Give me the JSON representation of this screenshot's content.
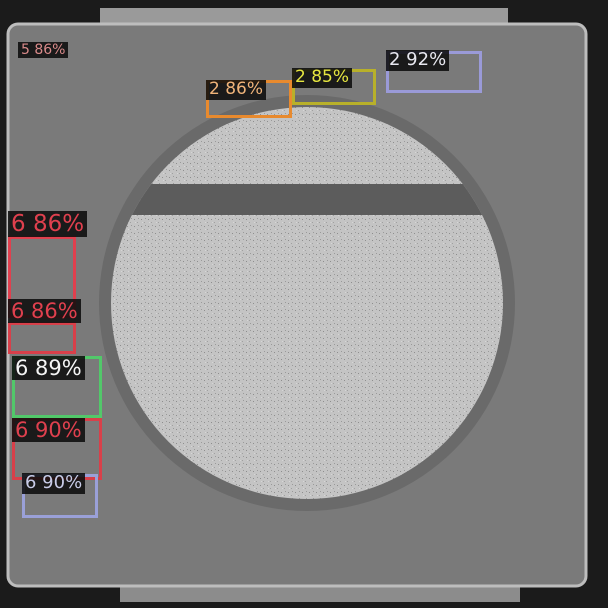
{
  "image": {
    "subject": "grayscale-led-package-inspection",
    "colors": {
      "background": "#1c1c1c",
      "package": "#7a7a7a",
      "lens": "#c2c2c2"
    }
  },
  "detections": [
    {
      "label": "5 86%",
      "color": "#d98a8a"
    },
    {
      "label": "2 86%",
      "color": "#e88a2e"
    },
    {
      "label": "2 85%",
      "color": "#b8b02a"
    },
    {
      "label": "2 92%",
      "color": "#9a9ad8"
    },
    {
      "label": "6 86%",
      "color": "#e0404e"
    },
    {
      "label": "6 86%",
      "color": "#d8404a"
    },
    {
      "label": "6 89%",
      "color": "#52c86a"
    },
    {
      "label": "6 90%",
      "color": "#d8404a"
    },
    {
      "label": "6 90%",
      "color": "#9aa0d8"
    }
  ]
}
